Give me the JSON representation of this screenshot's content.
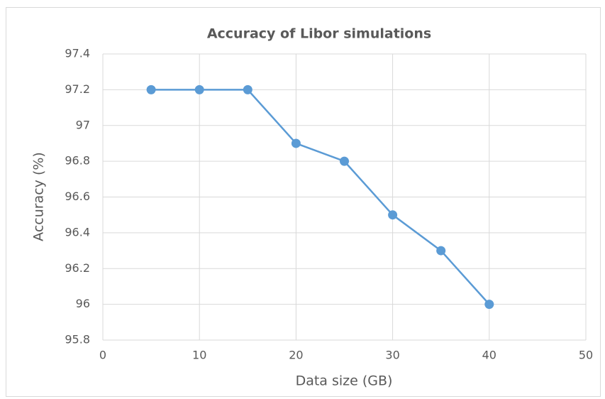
{
  "chart_data": {
    "type": "line",
    "title": "Accuracy of Libor simulations",
    "x_label": "Data size (GB)",
    "y_label": "Accuracy (%)",
    "x": [
      5,
      10,
      15,
      20,
      25,
      30,
      35,
      40
    ],
    "series": [
      {
        "color": "#5b9bd5",
        "values": [
          97.2,
          97.2,
          97.2,
          96.9,
          96.8,
          96.5,
          96.3,
          96.0
        ]
      }
    ],
    "xlim": [
      0,
      50
    ],
    "xticks": [
      0,
      10,
      20,
      30,
      40,
      50
    ],
    "ylim": [
      95.8,
      97.4
    ],
    "yticks": [
      95.8,
      96,
      96.2,
      96.4,
      96.6,
      96.8,
      97,
      97.2,
      97.4
    ],
    "grid": true
  }
}
